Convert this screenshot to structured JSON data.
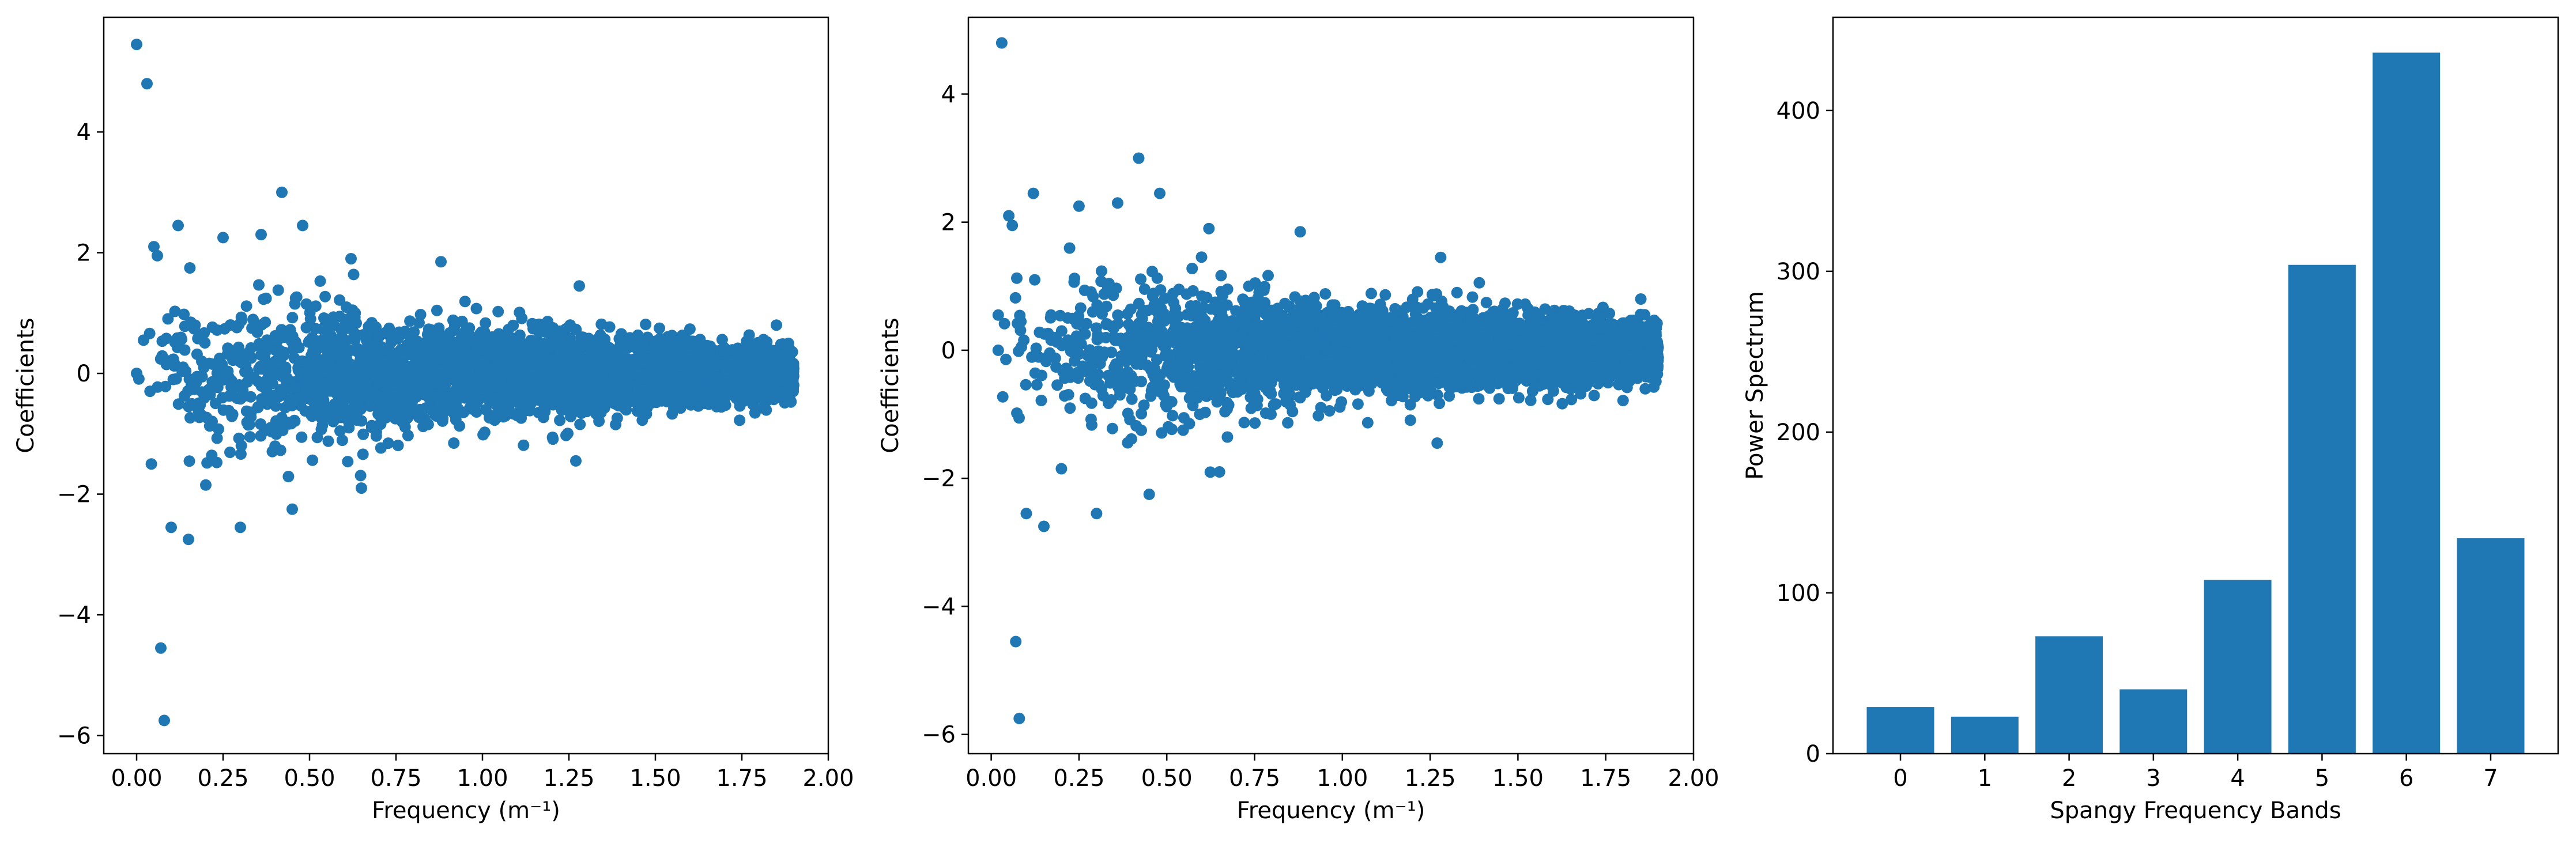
{
  "chart_data": [
    {
      "type": "scatter",
      "xlabel": "Frequency (m⁻¹)",
      "ylabel": "Coefficients",
      "xlim": [
        -0.095,
        2.0
      ],
      "ylim": [
        -6.3,
        5.9
      ],
      "xticks": [
        "0.00",
        "0.25",
        "0.50",
        "0.75",
        "1.00",
        "1.25",
        "1.50",
        "1.75",
        "2.00"
      ],
      "yticks": [
        "−6",
        "−4",
        "−2",
        "0",
        "2",
        "4"
      ],
      "color": "#1f77b4",
      "highlighted_points": [
        {
          "x": 0.0,
          "y": 5.45
        },
        {
          "x": 0.03,
          "y": 4.8
        },
        {
          "x": 0.07,
          "y": -4.55
        },
        {
          "x": 0.08,
          "y": -5.75
        },
        {
          "x": 0.05,
          "y": 2.1
        },
        {
          "x": 0.06,
          "y": 1.95
        },
        {
          "x": 0.42,
          "y": 3.0
        },
        {
          "x": 0.12,
          "y": 2.45
        },
        {
          "x": 0.15,
          "y": -2.75
        },
        {
          "x": 0.3,
          "y": -2.55
        },
        {
          "x": 0.1,
          "y": -2.55
        },
        {
          "x": 0.48,
          "y": 2.45
        },
        {
          "x": 0.45,
          "y": -2.25
        },
        {
          "x": 0.36,
          "y": 2.3
        },
        {
          "x": 0.25,
          "y": 2.25
        },
        {
          "x": 0.88,
          "y": 1.85
        },
        {
          "x": 0.62,
          "y": 1.9
        },
        {
          "x": 0.65,
          "y": -1.9
        },
        {
          "x": 0.2,
          "y": -1.85
        },
        {
          "x": 1.85,
          "y": 0.8
        },
        {
          "x": 1.28,
          "y": 1.45
        },
        {
          "x": 1.27,
          "y": -1.45
        },
        {
          "x": 0.02,
          "y": 0.55
        },
        {
          "x": 0.0,
          "y": 0.0
        }
      ],
      "bulk_distribution": {
        "x_range": [
          0.0,
          1.9
        ],
        "spread_at_x": [
          [
            0.0,
            1.6
          ],
          [
            0.5,
            1.3
          ],
          [
            1.0,
            0.85
          ],
          [
            1.5,
            0.65
          ],
          [
            1.9,
            0.45
          ]
        ]
      }
    },
    {
      "type": "scatter",
      "xlabel": "Frequency (m⁻¹)",
      "ylabel": "Coefficients",
      "xlim": [
        -0.065,
        2.0
      ],
      "ylim": [
        -6.3,
        5.2
      ],
      "xticks": [
        "0.00",
        "0.25",
        "0.50",
        "0.75",
        "1.00",
        "1.25",
        "1.50",
        "1.75",
        "2.00"
      ],
      "yticks": [
        "−6",
        "−4",
        "−2",
        "0",
        "2",
        "4"
      ],
      "color": "#1f77b4",
      "highlighted_points": [
        {
          "x": 0.03,
          "y": 4.8
        },
        {
          "x": 0.07,
          "y": -4.55
        },
        {
          "x": 0.08,
          "y": -5.75
        },
        {
          "x": 0.05,
          "y": 2.1
        },
        {
          "x": 0.06,
          "y": 1.95
        },
        {
          "x": 0.42,
          "y": 3.0
        },
        {
          "x": 0.12,
          "y": 2.45
        },
        {
          "x": 0.15,
          "y": -2.75
        },
        {
          "x": 0.3,
          "y": -2.55
        },
        {
          "x": 0.1,
          "y": -2.55
        },
        {
          "x": 0.48,
          "y": 2.45
        },
        {
          "x": 0.45,
          "y": -2.25
        },
        {
          "x": 0.36,
          "y": 2.3
        },
        {
          "x": 0.25,
          "y": 2.25
        },
        {
          "x": 0.88,
          "y": 1.85
        },
        {
          "x": 0.62,
          "y": 1.9
        },
        {
          "x": 0.65,
          "y": -1.9
        },
        {
          "x": 0.2,
          "y": -1.85
        },
        {
          "x": 1.85,
          "y": 0.8
        },
        {
          "x": 1.28,
          "y": 1.45
        },
        {
          "x": 1.27,
          "y": -1.45
        },
        {
          "x": 0.02,
          "y": 0.55
        },
        {
          "x": 0.02,
          "y": 0.0
        }
      ],
      "bulk_distribution": {
        "x_range": [
          0.02,
          1.9
        ],
        "spread_at_x": [
          [
            0.0,
            1.6
          ],
          [
            0.5,
            1.3
          ],
          [
            1.0,
            0.85
          ],
          [
            1.5,
            0.65
          ],
          [
            1.9,
            0.45
          ]
        ]
      }
    },
    {
      "type": "bar",
      "xlabel": "Spangy Frequency Bands",
      "ylabel": "Power Spectrum",
      "categories": [
        "0",
        "1",
        "2",
        "3",
        "4",
        "5",
        "6",
        "7"
      ],
      "values": [
        29,
        23,
        73,
        40,
        108,
        304,
        436,
        134
      ],
      "ylim": [
        0,
        458
      ],
      "yticks": [
        "0",
        "100",
        "200",
        "300",
        "400"
      ],
      "color": "#1f77b4"
    }
  ]
}
